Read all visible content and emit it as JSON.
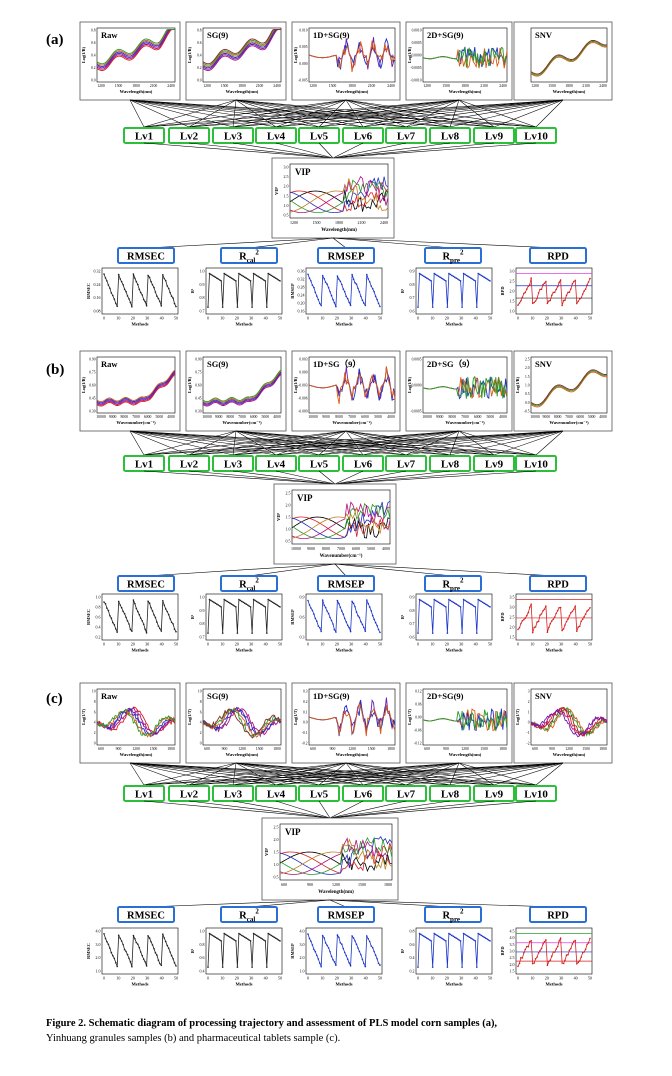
{
  "figure": {
    "panels": [
      {
        "label": "(a)",
        "spectra": [
          {
            "title": "Raw",
            "xlabel": "Wavelength(nm)",
            "ylabel": "Log(1/R)",
            "xticks": [
              "1200",
              "1500",
              "1800",
              "2100",
              "2400"
            ],
            "yticks": [
              "0.8",
              "0.6",
              "0.4",
              "0.2",
              "0.0"
            ],
            "style": "bands"
          },
          {
            "title": "SG(9)",
            "xlabel": "Wavelength(nm)",
            "ylabel": "Log(1/R)",
            "xticks": [
              "1200",
              "1500",
              "1800",
              "2100",
              "2400"
            ],
            "yticks": [
              "0.8",
              "0.6",
              "0.4",
              "0.2",
              "0.0"
            ],
            "style": "bands"
          },
          {
            "title": "1D+SG(9)",
            "xlabel": "Wavelength(nm)",
            "ylabel": "Log(1/R)",
            "xticks": [
              "1200",
              "1500",
              "1800",
              "2100",
              "2400"
            ],
            "yticks": [
              "0.010",
              "0.005",
              "0.000",
              "-0.005"
            ],
            "style": "deriv"
          },
          {
            "title": "2D+SG(9)",
            "xlabel": "Wavelength(nm)",
            "ylabel": "Log(1/R)",
            "xticks": [
              "1200",
              "1500",
              "1800",
              "2100",
              "2400"
            ],
            "yticks": [
              "0.0010",
              "0.0005",
              "0.0000",
              "-0.0005",
              "-0.0010"
            ],
            "style": "deriv2"
          },
          {
            "title": "SNV",
            "xlabel": "Wavelength(nm)",
            "ylabel": "",
            "xticks": [
              "1200",
              "1500",
              "1800",
              "2100",
              "2400"
            ],
            "yticks": [],
            "style": "snv"
          }
        ],
        "vip": {
          "title": "VIP",
          "xlabel": "Wavelength(nm)",
          "ylabel": "VIP",
          "xticks": [
            "1200",
            "1500",
            "1800",
            "2100",
            "2400"
          ],
          "yticks": [
            "3.0",
            "2.5",
            "2.0",
            "1.5",
            "1.0",
            "0.5"
          ]
        },
        "metric_plots": [
          {
            "ylabel": "RMSEC",
            "yticks": [
              "0.32",
              "0.24",
              "0.16",
              "0.08"
            ],
            "color": "#222222",
            "refs": []
          },
          {
            "ylabel": "R²",
            "yticks": [
              "1.0",
              "0.9",
              "0.8",
              "0.7"
            ],
            "color": "#222222",
            "refs": []
          },
          {
            "ylabel": "RMSEP",
            "yticks": [
              "0.36",
              "0.32",
              "0.28",
              "0.24",
              "0.20",
              "0.16"
            ],
            "color": "#1a35c8",
            "refs": []
          },
          {
            "ylabel": "R²",
            "yticks": [
              "0.9",
              "0.8",
              "0.7",
              "0.6"
            ],
            "color": "#1a35c8",
            "refs": []
          },
          {
            "ylabel": "RPD",
            "yticks": [
              "3.0",
              "2.5",
              "2.0",
              "1.5",
              "1.0"
            ],
            "color": "#d62020",
            "refs": [
              "#e040e0",
              "#1a35c8",
              "#222222"
            ]
          }
        ]
      },
      {
        "label": "(b)",
        "spectra": [
          {
            "title": "Raw",
            "xlabel": "Wavenumber(cm⁻¹)",
            "ylabel": "Log(1/R)",
            "xticks": [
              "10000",
              "9000",
              "8000",
              "7000",
              "6000",
              "5000",
              "4000"
            ],
            "yticks": [
              "0.90",
              "0.75",
              "0.60",
              "0.45",
              "0.30"
            ],
            "style": "rise"
          },
          {
            "title": "SG(9)",
            "xlabel": "Wavenumber(cm⁻¹)",
            "ylabel": "Log(1/R)",
            "xticks": [
              "10000",
              "9000",
              "8000",
              "7000",
              "6000",
              "5000",
              "4000"
            ],
            "yticks": [
              "0.90",
              "0.75",
              "0.60",
              "0.45",
              "0.30"
            ],
            "style": "rise"
          },
          {
            "title": "1D+SG（9）",
            "xlabel": "Wavenumber(cm⁻¹)",
            "ylabel": "Log(1/R)",
            "xticks": [
              "10000",
              "9000",
              "8000",
              "7000",
              "6000",
              "5000",
              "4000"
            ],
            "yticks": [
              "0.003",
              "0.000",
              "-0.003",
              "-0.006",
              "-0.009"
            ],
            "style": "deriv"
          },
          {
            "title": "2D+SG（9）",
            "xlabel": "Wavenumber(cm⁻¹)",
            "ylabel": "Log(1/R)",
            "xticks": [
              "10000",
              "9000",
              "8000",
              "7000",
              "6000",
              "5000",
              "4000"
            ],
            "yticks": [
              "0.0005",
              "0.0000",
              "-0.0005"
            ],
            "style": "deriv2"
          },
          {
            "title": "SNV",
            "xlabel": "Wavenumber(cm⁻¹)",
            "ylabel": "Log(1/R)",
            "xticks": [
              "10000",
              "9000",
              "8000",
              "7000",
              "6000",
              "5000",
              "4000"
            ],
            "yticks": [
              "2.5",
              "2.0",
              "1.5",
              "1.0",
              "0.5",
              "0.0",
              "-0.5"
            ],
            "style": "snv"
          }
        ],
        "vip": {
          "title": "VIP",
          "xlabel": "Wavenumber(cm⁻¹)",
          "ylabel": "VIP",
          "xticks": [
            "10000",
            "9000",
            "8000",
            "7000",
            "6000",
            "5000",
            "4000"
          ],
          "yticks": [
            "2.5",
            "2.0",
            "1.5",
            "1.0",
            "0.5"
          ]
        },
        "metric_plots": [
          {
            "ylabel": "RMSEC",
            "yticks": [
              "1.0",
              "0.8",
              "0.6",
              "0.4",
              "0.2"
            ],
            "color": "#222222",
            "refs": []
          },
          {
            "ylabel": "R²",
            "yticks": [
              "1.0",
              "0.9",
              "0.8",
              "0.7"
            ],
            "color": "#222222",
            "refs": []
          },
          {
            "ylabel": "RMSEP",
            "yticks": [
              "0.9",
              "0.6",
              "0.3"
            ],
            "color": "#1a35c8",
            "refs": []
          },
          {
            "ylabel": "R²",
            "yticks": [
              "0.9",
              "0.8",
              "0.7",
              "0.6"
            ],
            "color": "#1a35c8",
            "refs": []
          },
          {
            "ylabel": "RPD",
            "yticks": [
              "3.5",
              "3.0",
              "2.5",
              "2.0",
              "1.5"
            ],
            "color": "#d62020",
            "refs": [
              "#d62020",
              "#d62020"
            ]
          }
        ]
      },
      {
        "label": "(c)",
        "spectra": [
          {
            "title": "Raw",
            "xlabel": "Wavelength(nm)",
            "ylabel": "Log(1/T)",
            "xticks": [
              "600",
              "900",
              "1200",
              "1500",
              "1800"
            ],
            "yticks": [
              "10",
              "8",
              "6",
              "4",
              "2",
              "0"
            ],
            "style": "multi"
          },
          {
            "title": "SG(9)",
            "xlabel": "Wavelength(nm)",
            "ylabel": "Log(1/T)",
            "xticks": [
              "600",
              "900",
              "1200",
              "1500",
              "1800"
            ],
            "yticks": [
              "10",
              "8",
              "6",
              "4",
              "2",
              "0"
            ],
            "style": "multi"
          },
          {
            "title": "1D+SG(9)",
            "xlabel": "Wavelength(nm)",
            "ylabel": "Log(1/T)",
            "xticks": [
              "600",
              "900",
              "1200",
              "1500",
              "1800"
            ],
            "yticks": [
              "0.3",
              "0.2",
              "0.1",
              "0.0",
              "-0.1",
              "-0.2"
            ],
            "style": "deriv"
          },
          {
            "title": "2D+SG(9)",
            "xlabel": "Wavelength(nm)",
            "ylabel": "Log(1/T)",
            "xticks": [
              "600",
              "900",
              "1200",
              "1500",
              "1800"
            ],
            "yticks": [
              "0.12",
              "0.06",
              "0.00",
              "-0.06",
              "-0.12"
            ],
            "style": "deriv2"
          },
          {
            "title": "SNV",
            "xlabel": "Wavelength(nm)",
            "ylabel": "Log(1/T)",
            "xticks": [
              "600",
              "900",
              "1200",
              "1500",
              "1800"
            ],
            "yticks": [
              "3",
              "2",
              "1",
              "0",
              "-1",
              "-2"
            ],
            "style": "multi"
          }
        ],
        "vip": {
          "title": "VIP",
          "xlabel": "Wavelength(nm)",
          "ylabel": "VIP",
          "xticks": [
            "600",
            "900",
            "1200",
            "1500",
            "1800"
          ],
          "yticks": [
            "2.5",
            "2.0",
            "1.5",
            "1.0",
            "0.5"
          ]
        },
        "metric_plots": [
          {
            "ylabel": "RMSEC",
            "yticks": [
              "4.0",
              "3.0",
              "2.0",
              "1.0"
            ],
            "color": "#222222",
            "refs": []
          },
          {
            "ylabel": "R²",
            "yticks": [
              "1.0",
              "0.8",
              "0.6",
              "0.4"
            ],
            "color": "#222222",
            "refs": []
          },
          {
            "ylabel": "RMSEP",
            "yticks": [
              "4.0",
              "3.0",
              "2.0",
              "1.0"
            ],
            "color": "#1a35c8",
            "refs": []
          },
          {
            "ylabel": "R²",
            "yticks": [
              "0.8",
              "0.6",
              "0.4",
              "0.2"
            ],
            "color": "#1a35c8",
            "refs": []
          },
          {
            "ylabel": "RPD",
            "yticks": [
              "4.5",
              "4.0",
              "3.5",
              "3.0",
              "2.5",
              "2.0",
              "1.5"
            ],
            "color": "#d62020",
            "refs": [
              "#2aa02a",
              "#e040e0",
              "#1a35c8",
              "#d62020"
            ]
          }
        ]
      }
    ],
    "lv_labels": [
      "Lv1",
      "Lv2",
      "Lv3",
      "Lv4",
      "Lv5",
      "Lv6",
      "Lv7",
      "Lv8",
      "Lv9",
      "Lv10"
    ],
    "metrics": [
      {
        "main": "RMSEC",
        "sub": ""
      },
      {
        "main": "R",
        "sub": "cal",
        "sup": "2"
      },
      {
        "main": "RMSEP",
        "sub": ""
      },
      {
        "main": "R",
        "sub": "pre",
        "sup": "2"
      },
      {
        "main": "RPD",
        "sub": ""
      }
    ],
    "metric_xlabel": "Methods",
    "metric_xticks": [
      "0",
      "10",
      "20",
      "30",
      "40",
      "50"
    ],
    "colors": {
      "lv_border": "#2bbf3a",
      "metric_border": "#2a6fd6",
      "line": "#000000"
    }
  },
  "caption": {
    "bold": "Figure 2.  Schematic diagram of processing trajectory and assessment of PLS model corn samples (a),",
    "rest": "Yinhuang granules samples (b) and pharmaceutical tablets sample (c)."
  }
}
